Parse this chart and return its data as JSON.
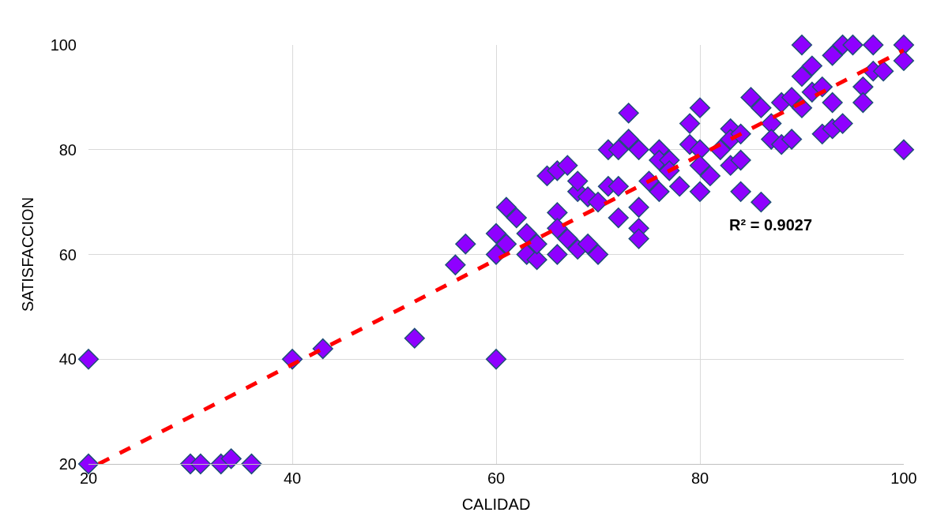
{
  "chart_data": {
    "type": "scatter",
    "xlabel": "CALIDAD",
    "ylabel": "SATISFACCION",
    "xlim": [
      20,
      100
    ],
    "xticks": [
      20,
      40,
      60,
      80,
      100
    ],
    "ylim": [
      20,
      100
    ],
    "yticks": [
      20,
      40,
      60,
      80,
      100
    ],
    "grid": true,
    "legend": false,
    "marker": "diamond",
    "annotations": [
      "R² = 0.9027"
    ],
    "series": [
      {
        "color": "#8f00ff",
        "x": [
          20,
          20,
          30,
          31,
          33,
          34,
          36,
          40,
          43,
          52,
          60,
          56,
          57,
          60,
          60,
          61,
          61,
          62,
          63,
          63,
          64,
          64,
          65,
          66,
          66,
          66,
          66,
          67,
          67,
          68,
          68,
          68,
          69,
          69,
          70,
          70,
          71,
          71,
          72,
          72,
          72,
          73,
          73,
          74,
          74,
          74,
          74,
          75,
          76,
          76,
          76,
          77,
          77,
          78,
          79,
          79,
          80,
          80,
          80,
          80,
          81,
          82,
          83,
          83,
          83,
          84,
          84,
          84,
          85,
          86,
          86,
          87,
          87,
          88,
          88,
          89,
          89,
          90,
          90,
          90,
          91,
          91,
          92,
          92,
          93,
          93,
          93,
          94,
          94,
          95,
          96,
          96,
          97,
          97,
          98,
          100,
          100,
          100
        ],
        "values": [
          40,
          20,
          20,
          20,
          20,
          21,
          20,
          40,
          42,
          44,
          40,
          58,
          62,
          60,
          64,
          62,
          69,
          67,
          64,
          60,
          59,
          62,
          75,
          76,
          68,
          65,
          60,
          77,
          63,
          72,
          74,
          61,
          71,
          62,
          60,
          70,
          73,
          80,
          80,
          67,
          73,
          87,
          82,
          80,
          69,
          65,
          63,
          74,
          80,
          78,
          72,
          78,
          76,
          73,
          85,
          81,
          88,
          80,
          77,
          72,
          75,
          80,
          84,
          82,
          77,
          72,
          78,
          83,
          90,
          88,
          70,
          85,
          82,
          81,
          89,
          90,
          82,
          100,
          94,
          88,
          96,
          91,
          92,
          83,
          98,
          89,
          84,
          100,
          85,
          100,
          92,
          89,
          100,
          95,
          95,
          100,
          97,
          80
        ]
      },
      {
        "type": "line",
        "color": "#ff0000",
        "line_style": "dashed",
        "marker": "none",
        "x": [
          21,
          100
        ],
        "values": [
          20,
          99
        ]
      }
    ]
  }
}
